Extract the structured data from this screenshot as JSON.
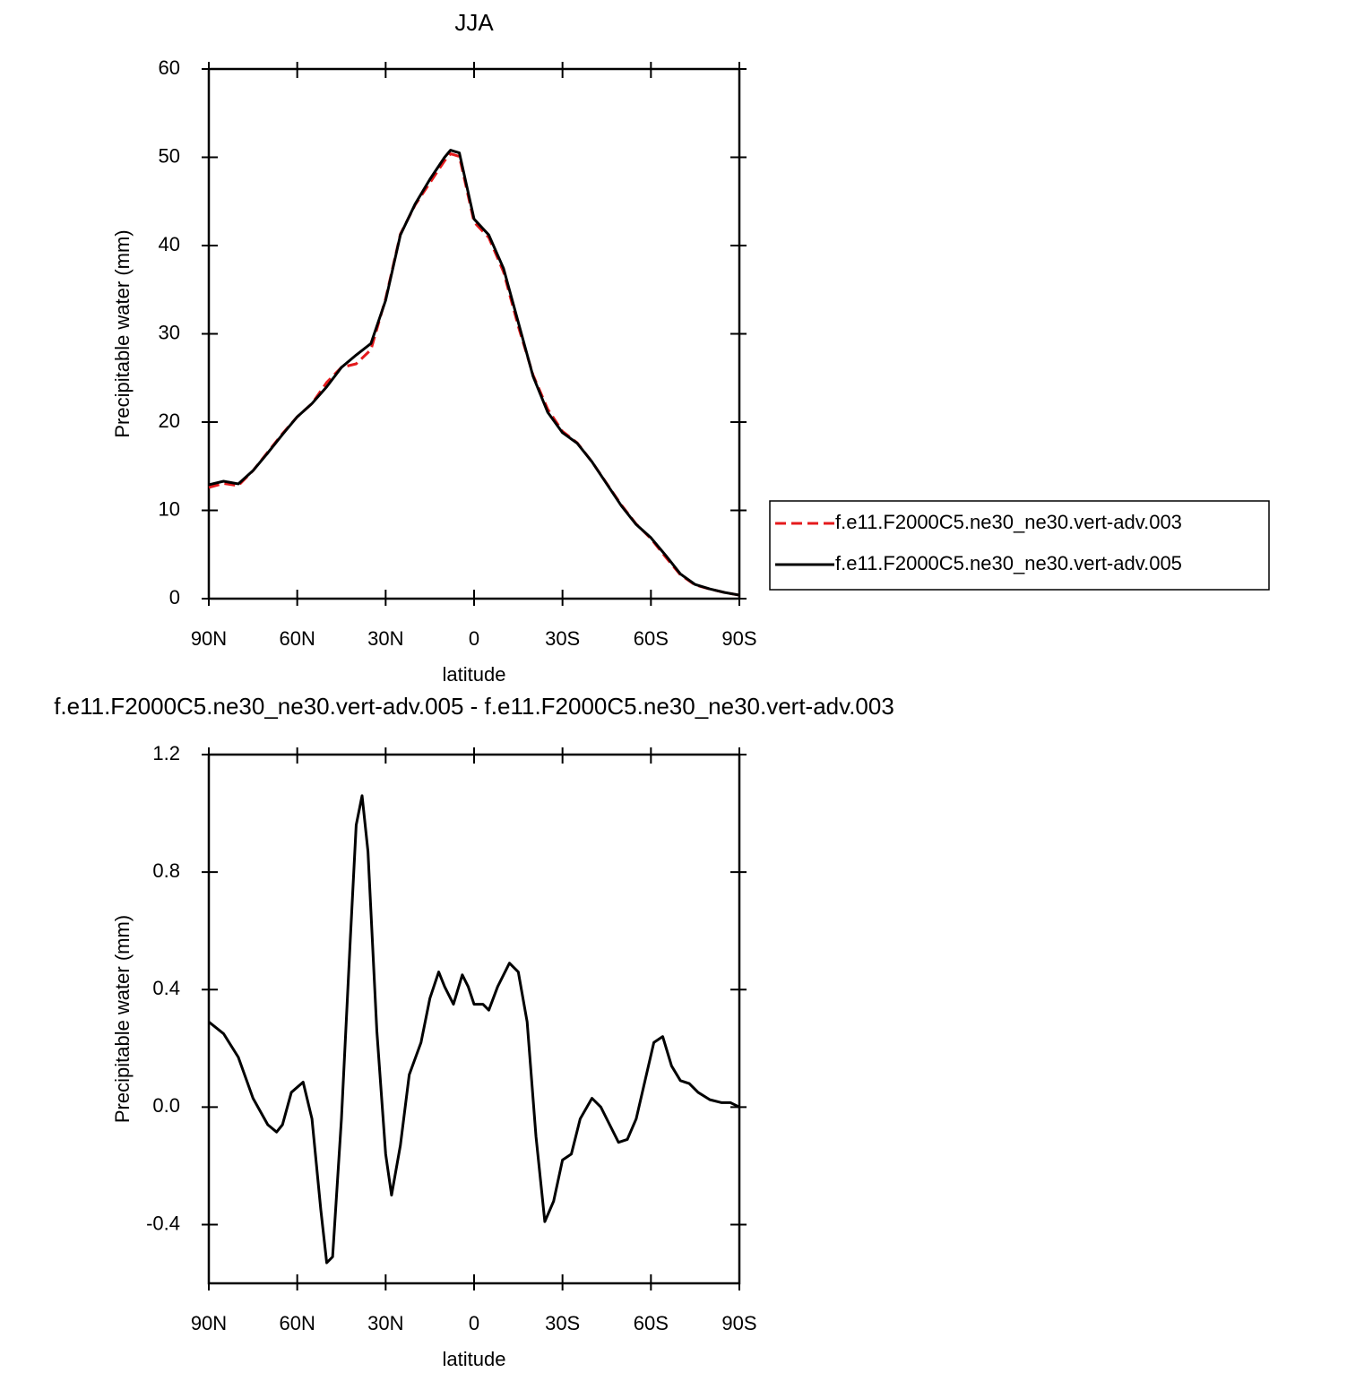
{
  "chart_data": [
    {
      "type": "line",
      "title": "JJA",
      "xlabel": "latitude",
      "ylabel": "Precipitable water (mm)",
      "x": [
        90,
        85,
        80,
        75,
        70,
        65,
        60,
        55,
        50,
        45,
        40,
        35,
        30,
        25,
        20,
        15,
        10,
        8,
        5,
        0,
        -5,
        -10,
        -15,
        -20,
        -25,
        -30,
        -35,
        -40,
        -45,
        -50,
        -55,
        -60,
        -65,
        -70,
        -75,
        -80,
        -85,
        -90
      ],
      "series": [
        {
          "name": "f.e11.F2000C5.ne30_ne30.vert-adv.003",
          "color": "#e41a1c",
          "dashed": true,
          "values": [
            12.6,
            13.05,
            12.8,
            14.5,
            16.6,
            18.7,
            20.6,
            22.1,
            24.5,
            26.2,
            26.6,
            28.2,
            34.0,
            41.3,
            44.6,
            47.1,
            49.6,
            50.4,
            50.1,
            42.65,
            40.9,
            37.0,
            30.85,
            25.35,
            21.45,
            18.95,
            17.65,
            15.5,
            13.05,
            10.6,
            8.45,
            6.8,
            4.7,
            2.7,
            1.55,
            1.08,
            0.69,
            0.4
          ]
        },
        {
          "name": "f.e11.F2000C5.ne30_ne30.vert-adv.005",
          "color": "#000000",
          "dashed": false,
          "values": [
            12.9,
            13.3,
            13.0,
            14.5,
            16.5,
            18.6,
            20.6,
            22.1,
            24.0,
            26.2,
            27.6,
            28.9,
            33.8,
            41.2,
            44.7,
            47.5,
            50.0,
            50.8,
            50.5,
            43.0,
            41.2,
            37.4,
            31.3,
            25.2,
            21.1,
            18.8,
            17.6,
            15.5,
            13.0,
            10.5,
            8.4,
            6.9,
            4.9,
            2.8,
            1.6,
            1.1,
            0.7,
            0.4
          ]
        }
      ],
      "xlim": [
        90,
        -90
      ],
      "xticks": [
        {
          "value": 90,
          "label": "90N"
        },
        {
          "value": 60,
          "label": "60N"
        },
        {
          "value": 30,
          "label": "30N"
        },
        0,
        {
          "value": -30,
          "label": "30S"
        },
        {
          "value": -60,
          "label": "60S"
        },
        {
          "value": -90,
          "label": "90S"
        }
      ],
      "ylim": [
        0,
        60
      ],
      "yticks": [
        0,
        10,
        20,
        30,
        40,
        50,
        60
      ],
      "grid": false
    },
    {
      "type": "line",
      "title": "f.e11.F2000C5.ne30_ne30.vert-adv.005 - f.e11.F2000C5.ne30_ne30.vert-adv.003",
      "xlabel": "latitude",
      "ylabel": "Precipitable water (mm)",
      "x": [
        90,
        85,
        80,
        75,
        70,
        67,
        65,
        62,
        58,
        55,
        52,
        50,
        48,
        45,
        42,
        40,
        38,
        36,
        33,
        30,
        28,
        25,
        22,
        18,
        15,
        12,
        10,
        7,
        4,
        2,
        0,
        -3,
        -5,
        -8,
        -12,
        -15,
        -18,
        -21,
        -24,
        -27,
        -30,
        -33,
        -36,
        -40,
        -43,
        -46,
        -49,
        -52,
        -55,
        -58,
        -61,
        -64,
        -67,
        -70,
        -73,
        -76,
        -80,
        -84,
        -87,
        -90
      ],
      "values": [
        0.29,
        0.25,
        0.17,
        0.03,
        -0.06,
        -0.085,
        -0.06,
        0.05,
        0.085,
        -0.04,
        -0.35,
        -0.53,
        -0.51,
        -0.04,
        0.57,
        0.96,
        1.06,
        0.87,
        0.26,
        -0.16,
        -0.3,
        -0.13,
        0.11,
        0.22,
        0.37,
        0.46,
        0.41,
        0.35,
        0.45,
        0.41,
        0.35,
        0.35,
        0.33,
        0.41,
        0.49,
        0.46,
        0.29,
        -0.1,
        -0.39,
        -0.32,
        -0.18,
        -0.16,
        -0.04,
        0.03,
        0.0,
        -0.06,
        -0.12,
        -0.11,
        -0.04,
        0.09,
        0.22,
        0.24,
        0.14,
        0.09,
        0.08,
        0.05,
        0.025,
        0.015,
        0.015,
        0.0
      ],
      "color": "#000000",
      "xlim": [
        90,
        -90
      ],
      "xticks": [
        {
          "value": 90,
          "label": "90N"
        },
        {
          "value": 60,
          "label": "60N"
        },
        {
          "value": 30,
          "label": "30N"
        },
        0,
        {
          "value": -30,
          "label": "30S"
        },
        {
          "value": -60,
          "label": "60S"
        },
        {
          "value": -90,
          "label": "90S"
        }
      ],
      "ylim": [
        -0.6,
        1.2
      ],
      "yticks": [
        -0.4,
        {
          "value": 0,
          "label": "0.0"
        },
        0.4,
        0.8,
        1.2
      ],
      "grid": false
    }
  ]
}
